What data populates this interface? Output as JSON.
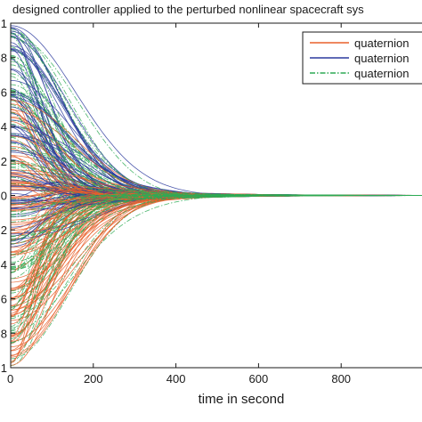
{
  "chart_data": {
    "type": "line",
    "title": "designed controller applied to the perturbed nonlinear spacecraft sys",
    "xlabel": "time in second",
    "ylabel": "",
    "xlim": [
      0,
      1000
    ],
    "ylim": [
      -1,
      1
    ],
    "x_ticks": [
      "0",
      "200",
      "400",
      "600",
      "800"
    ],
    "y_ticks": [
      "1",
      "8",
      "6",
      "4",
      "2",
      "0",
      "2",
      "4",
      "6",
      "8",
      "1"
    ],
    "grid": false,
    "legend_position": "top-right",
    "series": [
      {
        "name": "quaternion",
        "color": "#e8602c",
        "style": "solid",
        "initial_range": [
          -1,
          0.6
        ],
        "converged_value": 0,
        "settling_time": 700
      },
      {
        "name": "quaternion",
        "color": "#2b3a9e",
        "style": "solid",
        "initial_range": [
          -0.3,
          1
        ],
        "converged_value": 0,
        "settling_time": 700
      },
      {
        "name": "quaternion",
        "color": "#2eaa55",
        "style": "dashdot",
        "initial_range": [
          -1,
          1
        ],
        "converged_value": 0,
        "settling_time": 700
      }
    ]
  }
}
